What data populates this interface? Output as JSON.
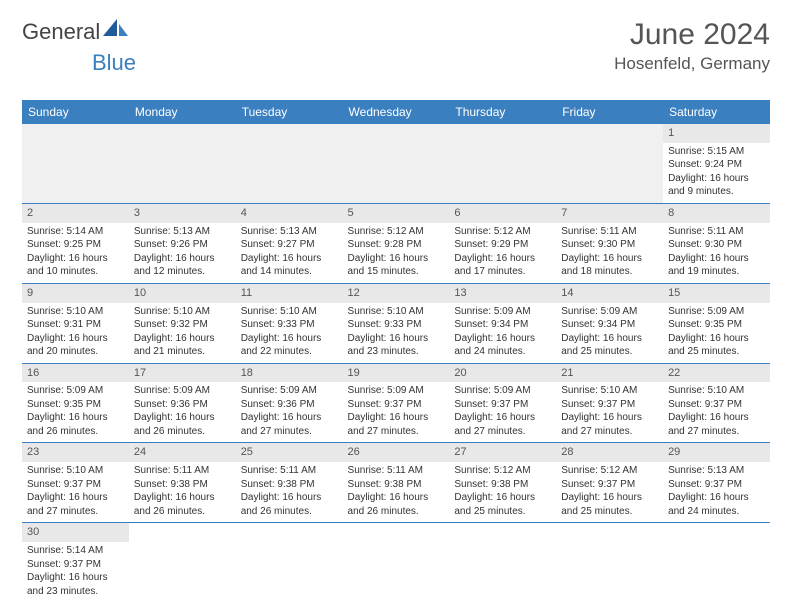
{
  "logo": {
    "main": "General",
    "accent": "Blue"
  },
  "header": {
    "month": "June 2024",
    "location": "Hosenfeld, Germany"
  },
  "colors": {
    "header_bg": "#3a7fbf",
    "header_text": "#ffffff",
    "daynum_bg": "#e8e8e8",
    "row_border": "#3a7fbf",
    "blank_bg": "#f0f0f0"
  },
  "weekdays": [
    "Sunday",
    "Monday",
    "Tuesday",
    "Wednesday",
    "Thursday",
    "Friday",
    "Saturday"
  ],
  "days": {
    "1": {
      "sunrise": "5:15 AM",
      "sunset": "9:24 PM",
      "daylight": "16 hours and 9 minutes."
    },
    "2": {
      "sunrise": "5:14 AM",
      "sunset": "9:25 PM",
      "daylight": "16 hours and 10 minutes."
    },
    "3": {
      "sunrise": "5:13 AM",
      "sunset": "9:26 PM",
      "daylight": "16 hours and 12 minutes."
    },
    "4": {
      "sunrise": "5:13 AM",
      "sunset": "9:27 PM",
      "daylight": "16 hours and 14 minutes."
    },
    "5": {
      "sunrise": "5:12 AM",
      "sunset": "9:28 PM",
      "daylight": "16 hours and 15 minutes."
    },
    "6": {
      "sunrise": "5:12 AM",
      "sunset": "9:29 PM",
      "daylight": "16 hours and 17 minutes."
    },
    "7": {
      "sunrise": "5:11 AM",
      "sunset": "9:30 PM",
      "daylight": "16 hours and 18 minutes."
    },
    "8": {
      "sunrise": "5:11 AM",
      "sunset": "9:30 PM",
      "daylight": "16 hours and 19 minutes."
    },
    "9": {
      "sunrise": "5:10 AM",
      "sunset": "9:31 PM",
      "daylight": "16 hours and 20 minutes."
    },
    "10": {
      "sunrise": "5:10 AM",
      "sunset": "9:32 PM",
      "daylight": "16 hours and 21 minutes."
    },
    "11": {
      "sunrise": "5:10 AM",
      "sunset": "9:33 PM",
      "daylight": "16 hours and 22 minutes."
    },
    "12": {
      "sunrise": "5:10 AM",
      "sunset": "9:33 PM",
      "daylight": "16 hours and 23 minutes."
    },
    "13": {
      "sunrise": "5:09 AM",
      "sunset": "9:34 PM",
      "daylight": "16 hours and 24 minutes."
    },
    "14": {
      "sunrise": "5:09 AM",
      "sunset": "9:34 PM",
      "daylight": "16 hours and 25 minutes."
    },
    "15": {
      "sunrise": "5:09 AM",
      "sunset": "9:35 PM",
      "daylight": "16 hours and 25 minutes."
    },
    "16": {
      "sunrise": "5:09 AM",
      "sunset": "9:35 PM",
      "daylight": "16 hours and 26 minutes."
    },
    "17": {
      "sunrise": "5:09 AM",
      "sunset": "9:36 PM",
      "daylight": "16 hours and 26 minutes."
    },
    "18": {
      "sunrise": "5:09 AM",
      "sunset": "9:36 PM",
      "daylight": "16 hours and 27 minutes."
    },
    "19": {
      "sunrise": "5:09 AM",
      "sunset": "9:37 PM",
      "daylight": "16 hours and 27 minutes."
    },
    "20": {
      "sunrise": "5:09 AM",
      "sunset": "9:37 PM",
      "daylight": "16 hours and 27 minutes."
    },
    "21": {
      "sunrise": "5:10 AM",
      "sunset": "9:37 PM",
      "daylight": "16 hours and 27 minutes."
    },
    "22": {
      "sunrise": "5:10 AM",
      "sunset": "9:37 PM",
      "daylight": "16 hours and 27 minutes."
    },
    "23": {
      "sunrise": "5:10 AM",
      "sunset": "9:37 PM",
      "daylight": "16 hours and 27 minutes."
    },
    "24": {
      "sunrise": "5:11 AM",
      "sunset": "9:38 PM",
      "daylight": "16 hours and 26 minutes."
    },
    "25": {
      "sunrise": "5:11 AM",
      "sunset": "9:38 PM",
      "daylight": "16 hours and 26 minutes."
    },
    "26": {
      "sunrise": "5:11 AM",
      "sunset": "9:38 PM",
      "daylight": "16 hours and 26 minutes."
    },
    "27": {
      "sunrise": "5:12 AM",
      "sunset": "9:38 PM",
      "daylight": "16 hours and 25 minutes."
    },
    "28": {
      "sunrise": "5:12 AM",
      "sunset": "9:37 PM",
      "daylight": "16 hours and 25 minutes."
    },
    "29": {
      "sunrise": "5:13 AM",
      "sunset": "9:37 PM",
      "daylight": "16 hours and 24 minutes."
    },
    "30": {
      "sunrise": "5:14 AM",
      "sunset": "9:37 PM",
      "daylight": "16 hours and 23 minutes."
    }
  },
  "labels": {
    "sunrise": "Sunrise:",
    "sunset": "Sunset:",
    "daylight": "Daylight:"
  },
  "layout": {
    "first_weekday_index": 6,
    "days_in_month": 30,
    "columns": 7
  }
}
